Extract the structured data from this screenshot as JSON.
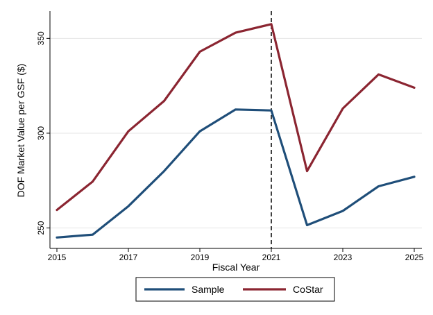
{
  "chart_data": {
    "type": "line",
    "title": "",
    "xlabel": "Fiscal Year",
    "ylabel": "DOF Market Value per GSF ($)",
    "x": [
      2015,
      2016,
      2017,
      2018,
      2019,
      2020,
      2021,
      2022,
      2023,
      2024,
      2025
    ],
    "xticks": [
      2015,
      2017,
      2019,
      2021,
      2023,
      2025
    ],
    "yticks": [
      250,
      300,
      350
    ],
    "xlim": [
      2015,
      2025
    ],
    "ylim": [
      244,
      360
    ],
    "grid": true,
    "legend_position": "bottom",
    "reference_line": {
      "x": 2021,
      "style": "dashed"
    },
    "series": [
      {
        "name": "Sample",
        "color": "#1f4e79",
        "values": [
          245,
          246.5,
          261.5,
          280,
          301,
          312.5,
          312,
          251.5,
          259,
          272,
          277
        ]
      },
      {
        "name": "CoStar",
        "color": "#8b2531",
        "values": [
          259.5,
          274.5,
          301,
          317,
          343,
          353,
          357.5,
          280,
          313,
          331,
          324
        ]
      }
    ]
  }
}
